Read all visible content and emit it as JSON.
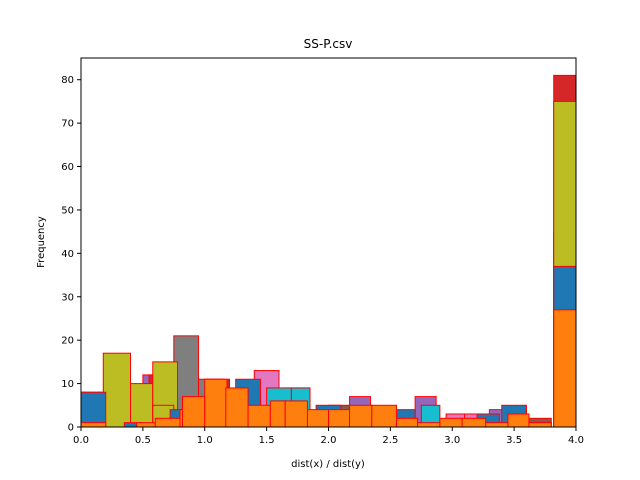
{
  "chart_data": {
    "type": "bar",
    "title": "SS-P.csv",
    "xlabel": "dist(x) / dist(y)",
    "ylabel": "Frequency",
    "xlim": [
      0.0,
      4.0
    ],
    "ylim": [
      0,
      85
    ],
    "xticks": [
      0.0,
      0.5,
      1.0,
      1.5,
      2.0,
      2.5,
      3.0,
      3.5,
      4.0
    ],
    "xtick_labels": [
      "0.0",
      "0.5",
      "1.0",
      "1.5",
      "2.0",
      "2.5",
      "3.0",
      "3.5",
      "4.0"
    ],
    "yticks": [
      0,
      10,
      20,
      30,
      40,
      50,
      60,
      70,
      80
    ],
    "ytick_labels": [
      "0",
      "10",
      "20",
      "30",
      "40",
      "50",
      "60",
      "70",
      "80"
    ],
    "edge_color": "#ff0000",
    "series": [
      {
        "name": "purple",
        "color": "#9467bd",
        "bins": [
          [
            0.0,
            0.17,
            8
          ],
          [
            0.33,
            0.5,
            1
          ],
          [
            0.5,
            0.7,
            12
          ],
          [
            2.17,
            2.34,
            7
          ],
          [
            2.7,
            2.87,
            7
          ],
          [
            3.3,
            3.5,
            4
          ],
          [
            3.82,
            4.0,
            45
          ]
        ]
      },
      {
        "name": "red",
        "color": "#d62728",
        "bins": [
          [
            0.0,
            0.17,
            5
          ],
          [
            0.55,
            0.72,
            12
          ],
          [
            0.72,
            0.9,
            10
          ],
          [
            1.0,
            1.2,
            11
          ],
          [
            1.65,
            1.85,
            9
          ],
          [
            3.82,
            4.0,
            81
          ]
        ]
      },
      {
        "name": "brown",
        "color": "#8c564b",
        "bins": [
          [
            0.0,
            0.15,
            5
          ],
          [
            0.7,
            0.88,
            8
          ],
          [
            1.3,
            1.5,
            8
          ],
          [
            2.0,
            2.17,
            5
          ],
          [
            3.6,
            3.8,
            2
          ]
        ]
      },
      {
        "name": "gray",
        "color": "#7f7f7f",
        "bins": [
          [
            0.75,
            0.95,
            21
          ],
          [
            0.95,
            1.15,
            11
          ]
        ]
      },
      {
        "name": "pink",
        "color": "#e377c2",
        "bins": [
          [
            0.0,
            0.2,
            1
          ],
          [
            0.18,
            0.4,
            8
          ],
          [
            0.55,
            0.72,
            6
          ],
          [
            1.4,
            1.6,
            13
          ],
          [
            2.95,
            3.1,
            3
          ],
          [
            3.1,
            3.25,
            3
          ],
          [
            3.6,
            3.8,
            1
          ]
        ]
      },
      {
        "name": "olive",
        "color": "#bcbd22",
        "bins": [
          [
            0.18,
            0.4,
            17
          ],
          [
            0.4,
            0.58,
            10
          ],
          [
            0.58,
            0.78,
            15
          ],
          [
            0.58,
            0.75,
            5
          ],
          [
            3.82,
            4.0,
            75
          ]
        ]
      },
      {
        "name": "cyan",
        "color": "#17becf",
        "bins": [
          [
            0.0,
            0.17,
            8
          ],
          [
            1.5,
            1.7,
            9
          ],
          [
            1.7,
            1.85,
            9
          ],
          [
            2.75,
            2.9,
            5
          ]
        ]
      },
      {
        "name": "blue",
        "color": "#1f77b4",
        "bins": [
          [
            0.0,
            0.2,
            8
          ],
          [
            0.35,
            0.5,
            1
          ],
          [
            0.72,
            0.88,
            4
          ],
          [
            1.25,
            1.45,
            11
          ],
          [
            1.55,
            1.75,
            6
          ],
          [
            1.9,
            2.1,
            5
          ],
          [
            2.55,
            2.7,
            4
          ],
          [
            3.2,
            3.38,
            3
          ],
          [
            3.4,
            3.6,
            5
          ],
          [
            3.82,
            4.0,
            37
          ]
        ]
      },
      {
        "name": "orange",
        "color": "#ff7f0e",
        "bins": [
          [
            0.0,
            0.2,
            1
          ],
          [
            0.45,
            0.6,
            1
          ],
          [
            0.6,
            0.8,
            2
          ],
          [
            0.8,
            0.97,
            4
          ],
          [
            0.82,
            1.0,
            7
          ],
          [
            1.0,
            1.18,
            11
          ],
          [
            1.17,
            1.35,
            9
          ],
          [
            1.35,
            1.53,
            5
          ],
          [
            1.53,
            1.65,
            6
          ],
          [
            1.65,
            1.83,
            6
          ],
          [
            1.83,
            2.0,
            4
          ],
          [
            2.0,
            2.17,
            4
          ],
          [
            2.17,
            2.35,
            5
          ],
          [
            2.35,
            2.55,
            5
          ],
          [
            2.55,
            2.72,
            2
          ],
          [
            2.72,
            2.9,
            1
          ],
          [
            2.9,
            3.08,
            2
          ],
          [
            3.08,
            3.27,
            2
          ],
          [
            3.27,
            3.45,
            1
          ],
          [
            3.45,
            3.62,
            3
          ],
          [
            3.62,
            3.8,
            1
          ],
          [
            3.82,
            4.0,
            27
          ]
        ]
      }
    ]
  }
}
